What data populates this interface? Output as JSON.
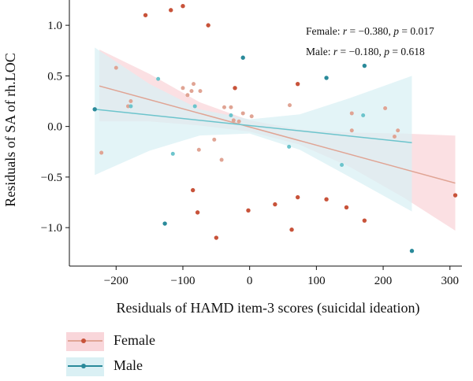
{
  "chart_data": {
    "type": "scatter",
    "xlabel": "Residuals of HAMD item-3 scores (suicidal ideation)",
    "ylabel": "Residuals of SA of rh.LOC",
    "xlim": [
      -270,
      318
    ],
    "ylim": [
      -1.38,
      1.25
    ],
    "xticks": [
      -200,
      -100,
      0,
      100,
      200,
      300
    ],
    "xtick_labels": [
      "−200",
      "−100",
      "0",
      "100",
      "200",
      "300"
    ],
    "yticks": [
      -1.0,
      -0.5,
      0.0,
      0.5,
      1.0
    ],
    "ytick_labels": [
      "−1.0",
      "−0.5",
      "0.0",
      "0.5",
      "1.0"
    ],
    "grid": false,
    "legend_position": "below",
    "annotations": [
      {
        "group": "Female",
        "text_prefix": "Female: ",
        "r_label": "r",
        "r_value": " = −0.380, ",
        "p_label": "p",
        "p_value": " = 0.017"
      },
      {
        "group": "Male",
        "text_prefix": "Male: ",
        "r_label": "r",
        "r_value": " = −0.180, ",
        "p_label": "p",
        "p_value": " = 0.618"
      }
    ],
    "series": [
      {
        "name": "Female",
        "color": "#c8533a",
        "light_color": "#e0a494",
        "band_color": "#f9d6da",
        "fit": {
          "x0": -225,
          "y0": 0.4,
          "x1": 308,
          "y1": -0.56
        },
        "ci_upper": [
          [
            -225,
            0.76
          ],
          [
            -150,
            0.52
          ],
          [
            -75,
            0.24
          ],
          [
            0,
            0.06
          ],
          [
            75,
            -0.03
          ],
          [
            150,
            -0.06
          ],
          [
            230,
            -0.07
          ],
          [
            308,
            -0.09
          ]
        ],
        "ci_lower": [
          [
            -225,
            0.05
          ],
          [
            -150,
            0.05
          ],
          [
            -75,
            0.01
          ],
          [
            0,
            -0.05
          ],
          [
            75,
            -0.18
          ],
          [
            150,
            -0.4
          ],
          [
            230,
            -0.7
          ],
          [
            308,
            -1.03
          ]
        ],
        "points_dark": [
          [
            -156,
            1.1
          ],
          [
            -118,
            1.15
          ],
          [
            -100,
            1.19
          ],
          [
            -62,
            1.0
          ],
          [
            -22,
            0.38
          ],
          [
            72,
            0.42
          ],
          [
            -85,
            -0.63
          ],
          [
            -78,
            -0.85
          ],
          [
            -50,
            -1.1
          ],
          [
            -2,
            -0.83
          ],
          [
            38,
            -0.77
          ],
          [
            63,
            -1.02
          ],
          [
            72,
            -0.7
          ],
          [
            115,
            -0.72
          ],
          [
            145,
            -0.8
          ],
          [
            172,
            -0.93
          ],
          [
            308,
            -0.68
          ]
        ],
        "points_light": [
          [
            -200,
            0.58
          ],
          [
            -222,
            -0.26
          ],
          [
            -182,
            0.2
          ],
          [
            -178,
            0.25
          ],
          [
            -100,
            0.38
          ],
          [
            -93,
            0.31
          ],
          [
            -84,
            0.42
          ],
          [
            -87,
            0.35
          ],
          [
            -74,
            0.35
          ],
          [
            -76,
            -0.23
          ],
          [
            -53,
            -0.13
          ],
          [
            -42,
            -0.33
          ],
          [
            -38,
            0.19
          ],
          [
            -28,
            0.19
          ],
          [
            -24,
            0.06
          ],
          [
            -16,
            0.05
          ],
          [
            -10,
            0.13
          ],
          [
            3,
            0.1
          ],
          [
            60,
            0.21
          ],
          [
            153,
            0.13
          ],
          [
            153,
            -0.04
          ],
          [
            203,
            0.18
          ],
          [
            217,
            -0.1
          ],
          [
            222,
            -0.04
          ]
        ]
      },
      {
        "name": "Male",
        "color": "#2a8a9a",
        "light_color": "#6cc4cc",
        "band_color": "#daf0f4",
        "fit": {
          "x0": -232,
          "y0": 0.17,
          "x1": 243,
          "y1": -0.16
        },
        "ci_upper": [
          [
            -232,
            0.78
          ],
          [
            -150,
            0.42
          ],
          [
            -75,
            0.17
          ],
          [
            0,
            0.07
          ],
          [
            75,
            0.12
          ],
          [
            150,
            0.28
          ],
          [
            243,
            0.5
          ]
        ],
        "ci_lower": [
          [
            -232,
            -0.48
          ],
          [
            -150,
            -0.24
          ],
          [
            -75,
            -0.09
          ],
          [
            0,
            -0.07
          ],
          [
            75,
            -0.23
          ],
          [
            150,
            -0.5
          ],
          [
            243,
            -0.84
          ]
        ],
        "points_dark": [
          [
            -232,
            0.17
          ],
          [
            -10,
            0.68
          ],
          [
            115,
            0.48
          ],
          [
            172,
            0.6
          ],
          [
            -127,
            -0.96
          ],
          [
            243,
            -1.23
          ]
        ],
        "points_light": [
          [
            -137,
            0.47
          ],
          [
            -178,
            0.2
          ],
          [
            -82,
            0.2
          ],
          [
            -28,
            0.11
          ],
          [
            -115,
            -0.27
          ],
          [
            59,
            -0.2
          ],
          [
            138,
            -0.38
          ],
          [
            170,
            0.11
          ]
        ]
      }
    ]
  },
  "legend": {
    "female_label": "Female",
    "male_label": "Male"
  }
}
